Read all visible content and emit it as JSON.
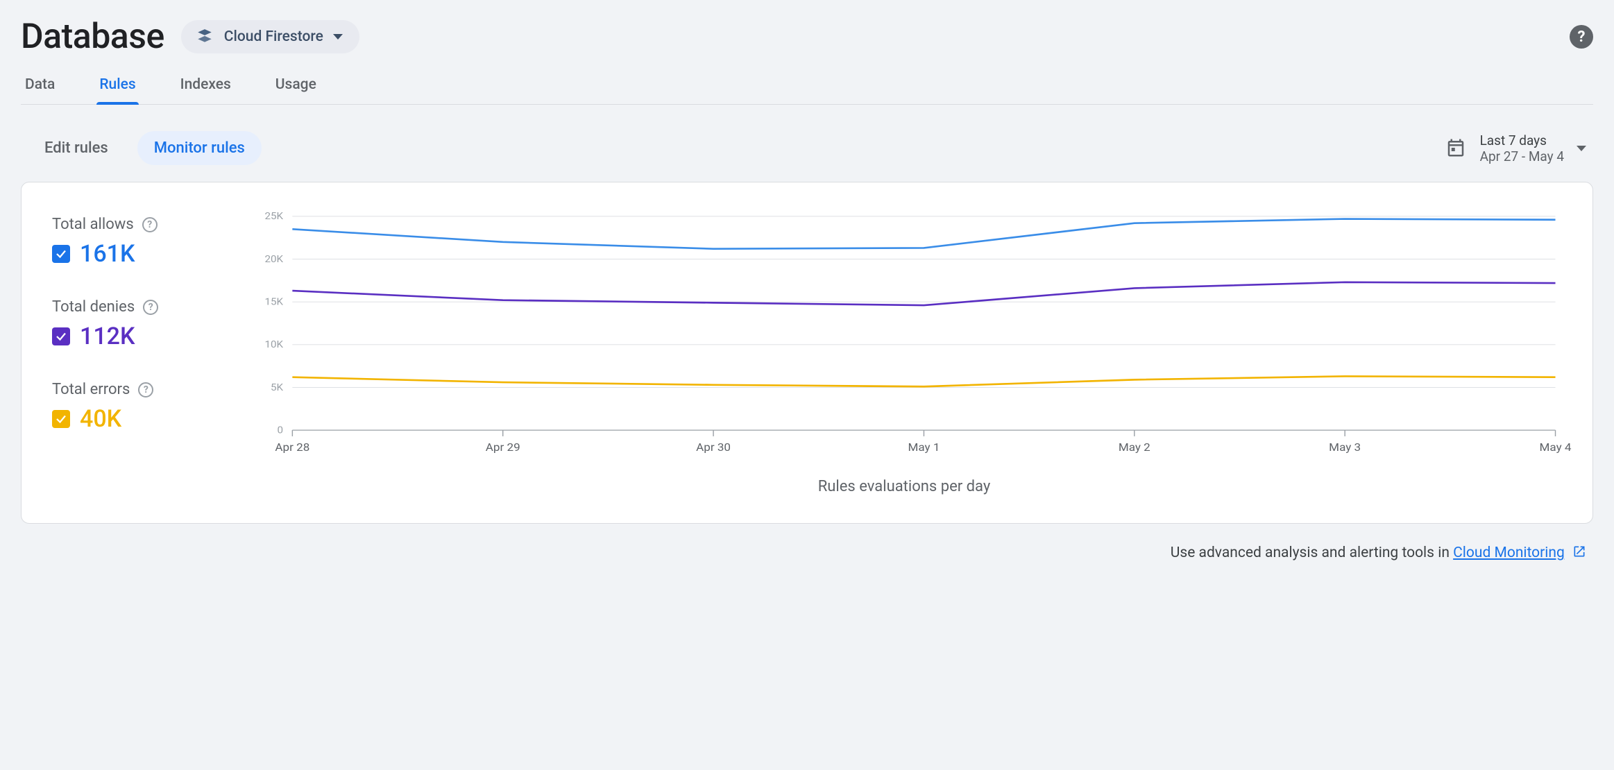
{
  "header": {
    "title": "Database",
    "selector_label": "Cloud Firestore"
  },
  "tabs": [
    "Data",
    "Rules",
    "Indexes",
    "Usage"
  ],
  "tabs_active_index": 1,
  "subtabs": {
    "items": [
      "Edit rules",
      "Monitor rules"
    ],
    "active_index": 1
  },
  "date_range": {
    "label": "Last 7 days",
    "range": "Apr 27 - May 4"
  },
  "legend": [
    {
      "label": "Total allows",
      "value": "161K",
      "color": "#1a73e8"
    },
    {
      "label": "Total denies",
      "value": "112K",
      "color": "#5a2fc2"
    },
    {
      "label": "Total errors",
      "value": "40K",
      "color": "#f2b400"
    }
  ],
  "chart": {
    "type": "line",
    "x_labels": [
      "Apr 28",
      "Apr 29",
      "Apr 30",
      "May 1",
      "May 2",
      "May 3",
      "May 4"
    ],
    "y_ticks": [
      0,
      5,
      10,
      15,
      20,
      25
    ],
    "y_tick_suffix": "K",
    "ylim": [
      0,
      25
    ],
    "series": [
      {
        "color": "#3a8de8",
        "values": [
          23.5,
          22.0,
          21.2,
          21.3,
          24.2,
          24.7,
          24.6
        ]
      },
      {
        "color": "#5a2fc2",
        "values": [
          16.3,
          15.2,
          14.9,
          14.6,
          16.6,
          17.3,
          17.2
        ]
      },
      {
        "color": "#f2b400",
        "values": [
          6.2,
          5.6,
          5.3,
          5.1,
          5.9,
          6.3,
          6.2
        ]
      }
    ],
    "title": "Rules evaluations per day",
    "background_color": "#ffffff",
    "grid_color": "#dadce0",
    "axis_color": "#9aa0a6",
    "line_width": 3,
    "label_fontsize": 18
  },
  "footer": {
    "text": "Use advanced analysis and alerting tools in ",
    "link_text": "Cloud Monitoring"
  }
}
